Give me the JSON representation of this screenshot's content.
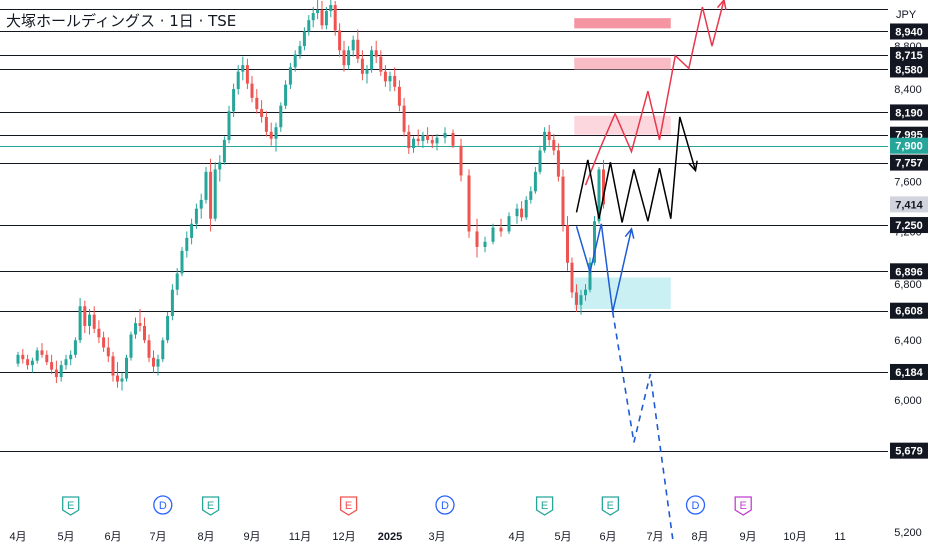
{
  "chart_data": {
    "type": "candlestick",
    "title": "大塚ホールディングス · 1日 · TSE",
    "currency": "JPY",
    "y_axis": {
      "min": 5100,
      "max": 9250,
      "ticks": [
        "5,200",
        "6,000",
        "6,400",
        "6,800",
        "7,200",
        "7,600",
        "8,000",
        "8,400",
        "8,800"
      ]
    },
    "x_axis": {
      "labels": [
        "4月",
        "5月",
        "6月",
        "7月",
        "8月",
        "9月",
        "11月",
        "12月",
        "2025",
        "3月",
        "4月",
        "5月",
        "6月",
        "7月",
        "8月",
        "9月",
        "10月",
        "11"
      ]
    },
    "levels": [
      {
        "value": 9160,
        "label": ""
      },
      {
        "value": 8940,
        "label": "8,940"
      },
      {
        "value": 8715,
        "label": "8,715"
      },
      {
        "value": 8580,
        "label": "8,580"
      },
      {
        "value": 8190,
        "label": "8,190"
      },
      {
        "value": 7995,
        "label": "7,995"
      },
      {
        "value": 7757,
        "label": "7,757"
      },
      {
        "value": 7250,
        "label": "7,250"
      },
      {
        "value": 6896,
        "label": "6,896"
      },
      {
        "value": 6608,
        "label": "6,608"
      },
      {
        "value": 6184,
        "label": "6,184"
      },
      {
        "value": 5679,
        "label": "5,679"
      }
    ],
    "marker_line": {
      "value": 7900,
      "label": "7,900",
      "color": "#26a69a"
    },
    "last_price": {
      "value": 7414,
      "label": "7,414"
    },
    "zones": [
      {
        "from_month": 11.25,
        "to_month": 13.35,
        "low": 8970,
        "high": 9070,
        "color": "#f48a97"
      },
      {
        "from_month": 11.25,
        "to_month": 13.35,
        "low": 8580,
        "high": 8690,
        "color": "#f8b4be"
      },
      {
        "from_month": 11.25,
        "to_month": 13.35,
        "low": 7995,
        "high": 8160,
        "color": "#fcd3d9"
      },
      {
        "from_month": 11.25,
        "to_month": 13.35,
        "low": 6620,
        "high": 6850,
        "color": "#c5eef3"
      }
    ],
    "events": [
      {
        "month": 1.1,
        "letter": "E"
      },
      {
        "month": 3.1,
        "letter": "D"
      },
      {
        "month": 4.1,
        "letter": "E"
      },
      {
        "month": 7.1,
        "letter": "E"
      },
      {
        "month": 9.1,
        "letter": "D"
      },
      {
        "month": 10.6,
        "letter": "E"
      },
      {
        "month": 12.05,
        "letter": "E"
      },
      {
        "month": 13.9,
        "letter": "D"
      },
      {
        "month": 14.9,
        "letter": "E"
      }
    ],
    "projection_paths": [
      {
        "color": "#e8374d",
        "points": [
          [
            11.5,
            7570
          ],
          [
            11.85,
            7900
          ],
          [
            12.15,
            8180
          ],
          [
            12.5,
            7850
          ],
          [
            12.85,
            8380
          ],
          [
            13.1,
            7950
          ],
          [
            13.45,
            8710
          ],
          [
            13.75,
            8590
          ],
          [
            14.05,
            9180
          ],
          [
            14.25,
            8800
          ],
          [
            14.5,
            9250
          ]
        ]
      },
      {
        "color": "#000000",
        "points": [
          [
            11.3,
            7350
          ],
          [
            11.55,
            7780
          ],
          [
            11.8,
            7300
          ],
          [
            12.05,
            7760
          ],
          [
            12.3,
            7270
          ],
          [
            12.55,
            7700
          ],
          [
            12.85,
            7280
          ],
          [
            13.1,
            7710
          ],
          [
            13.35,
            7300
          ],
          [
            13.55,
            8150
          ],
          [
            13.9,
            7690
          ]
        ]
      },
      {
        "color": "#1e5bd6",
        "points": [
          [
            11.3,
            7240
          ],
          [
            11.6,
            6890
          ],
          [
            11.85,
            7260
          ],
          [
            12.1,
            6600
          ],
          [
            12.5,
            7220
          ]
        ]
      },
      {
        "color": "#1e5bd6",
        "dashed": true,
        "points": [
          [
            12.1,
            6600
          ],
          [
            12.55,
            5730
          ],
          [
            12.9,
            6170
          ],
          [
            13.4,
            5150
          ]
        ]
      }
    ],
    "candles": [
      [
        0.0,
        6240,
        6320,
        6220,
        6300
      ],
      [
        0.1,
        6300,
        6340,
        6240,
        6270
      ],
      [
        0.2,
        6270,
        6300,
        6200,
        6230
      ],
      [
        0.3,
        6230,
        6280,
        6180,
        6260
      ],
      [
        0.4,
        6260,
        6350,
        6240,
        6330
      ],
      [
        0.5,
        6330,
        6380,
        6280,
        6300
      ],
      [
        0.6,
        6300,
        6330,
        6230,
        6250
      ],
      [
        0.7,
        6250,
        6300,
        6170,
        6200
      ],
      [
        0.8,
        6200,
        6260,
        6110,
        6150
      ],
      [
        0.9,
        6150,
        6260,
        6120,
        6230
      ],
      [
        1.0,
        6230,
        6300,
        6200,
        6270
      ],
      [
        1.1,
        6270,
        6330,
        6230,
        6300
      ],
      [
        1.2,
        6300,
        6420,
        6280,
        6400
      ],
      [
        1.3,
        6400,
        6700,
        6380,
        6640
      ],
      [
        1.4,
        6640,
        6680,
        6450,
        6500
      ],
      [
        1.5,
        6500,
        6620,
        6440,
        6580
      ],
      [
        1.6,
        6580,
        6640,
        6450,
        6480
      ],
      [
        1.7,
        6480,
        6540,
        6380,
        6420
      ],
      [
        1.8,
        6420,
        6460,
        6320,
        6350
      ],
      [
        1.9,
        6350,
        6420,
        6250,
        6290
      ],
      [
        2.0,
        6290,
        6320,
        6120,
        6160
      ],
      [
        2.1,
        6160,
        6250,
        6080,
        6120
      ],
      [
        2.2,
        6120,
        6180,
        6060,
        6140
      ],
      [
        2.3,
        6140,
        6300,
        6120,
        6280
      ],
      [
        2.4,
        6280,
        6460,
        6260,
        6440
      ],
      [
        2.5,
        6440,
        6560,
        6410,
        6520
      ],
      [
        2.6,
        6520,
        6620,
        6460,
        6500
      ],
      [
        2.7,
        6500,
        6560,
        6380,
        6400
      ],
      [
        2.8,
        6400,
        6440,
        6250,
        6280
      ],
      [
        2.9,
        6280,
        6330,
        6180,
        6220
      ],
      [
        3.0,
        6220,
        6300,
        6160,
        6270
      ],
      [
        3.1,
        6270,
        6420,
        6250,
        6400
      ],
      [
        3.2,
        6400,
        6600,
        6380,
        6570
      ],
      [
        3.3,
        6570,
        6800,
        6540,
        6760
      ],
      [
        3.4,
        6760,
        6920,
        6720,
        6880
      ],
      [
        3.5,
        6880,
        7080,
        6860,
        7050
      ],
      [
        3.6,
        7050,
        7200,
        7000,
        7150
      ],
      [
        3.7,
        7150,
        7300,
        7100,
        7260
      ],
      [
        3.8,
        7260,
        7420,
        7220,
        7380
      ],
      [
        3.9,
        7380,
        7500,
        7300,
        7450
      ],
      [
        4.0,
        7450,
        7720,
        7420,
        7680
      ],
      [
        4.1,
        7680,
        7790,
        7200,
        7300
      ],
      [
        4.2,
        7300,
        7760,
        7280,
        7700
      ],
      [
        4.3,
        7700,
        7820,
        7600,
        7760
      ],
      [
        4.4,
        7760,
        7980,
        7740,
        7950
      ],
      [
        4.5,
        7950,
        8250,
        7920,
        8200
      ],
      [
        4.6,
        8200,
        8450,
        8150,
        8400
      ],
      [
        4.7,
        8400,
        8620,
        8350,
        8560
      ],
      [
        4.8,
        8560,
        8700,
        8480,
        8620
      ],
      [
        4.9,
        8620,
        8680,
        8400,
        8450
      ],
      [
        5.0,
        8450,
        8520,
        8280,
        8320
      ],
      [
        5.1,
        8320,
        8400,
        8180,
        8220
      ],
      [
        5.2,
        8220,
        8300,
        8100,
        8150
      ],
      [
        5.3,
        8150,
        8200,
        7980,
        8020
      ],
      [
        5.4,
        8020,
        8100,
        7900,
        7960
      ],
      [
        5.5,
        7960,
        8100,
        7850,
        8060
      ],
      [
        5.6,
        8060,
        8280,
        8020,
        8250
      ],
      [
        5.7,
        8250,
        8480,
        8220,
        8440
      ],
      [
        5.8,
        8440,
        8640,
        8400,
        8600
      ],
      [
        5.9,
        8600,
        8760,
        8560,
        8720
      ],
      [
        6.0,
        8720,
        8850,
        8680,
        8800
      ],
      [
        6.1,
        8800,
        8980,
        8760,
        8940
      ],
      [
        6.2,
        8940,
        9100,
        8900,
        9050
      ],
      [
        6.3,
        9050,
        9180,
        8980,
        9120
      ],
      [
        6.4,
        9120,
        9250,
        9060,
        9150
      ],
      [
        6.5,
        9150,
        9240,
        8960,
        9000
      ],
      [
        6.6,
        9000,
        9180,
        8960,
        9140
      ],
      [
        6.7,
        9140,
        9250,
        9080,
        9200
      ],
      [
        6.8,
        9200,
        9240,
        8900,
        8950
      ],
      [
        6.9,
        8950,
        9020,
        8700,
        8760
      ],
      [
        7.0,
        8760,
        8850,
        8560,
        8620
      ],
      [
        7.1,
        8620,
        8800,
        8580,
        8760
      ],
      [
        7.2,
        8760,
        8900,
        8700,
        8860
      ],
      [
        7.3,
        8860,
        8960,
        8640,
        8680
      ],
      [
        7.4,
        8680,
        8760,
        8480,
        8540
      ],
      [
        7.5,
        8540,
        8620,
        8450,
        8580
      ],
      [
        7.6,
        8580,
        8800,
        8550,
        8760
      ],
      [
        7.7,
        8760,
        8850,
        8640,
        8700
      ],
      [
        7.8,
        8700,
        8760,
        8520,
        8560
      ],
      [
        7.9,
        8560,
        8620,
        8420,
        8470
      ],
      [
        8.0,
        8470,
        8560,
        8380,
        8520
      ],
      [
        8.1,
        8520,
        8600,
        8380,
        8420
      ],
      [
        8.2,
        8420,
        8480,
        8200,
        8250
      ],
      [
        8.3,
        8250,
        8320,
        7980,
        8020
      ],
      [
        8.4,
        8020,
        8080,
        7830,
        7880
      ],
      [
        8.5,
        7880,
        7980,
        7840,
        7960
      ],
      [
        8.6,
        7960,
        8040,
        7900,
        7940
      ],
      [
        8.7,
        7940,
        8020,
        7880,
        7990
      ],
      [
        8.8,
        7990,
        8060,
        7920,
        7950
      ],
      [
        8.9,
        7950,
        7990,
        7880,
        7920
      ],
      [
        9.0,
        7920,
        8000,
        7860,
        7970
      ],
      [
        9.1,
        7970,
        8060,
        7920,
        8010
      ],
      [
        9.2,
        8010,
        8040,
        7880,
        7900
      ],
      [
        9.3,
        7900,
        7960,
        7600,
        7650
      ],
      [
        9.4,
        7650,
        7700,
        7150,
        7200
      ],
      [
        9.5,
        7200,
        7300,
        7000,
        7080
      ],
      [
        9.6,
        7080,
        7160,
        7040,
        7120
      ],
      [
        9.7,
        7120,
        7260,
        7100,
        7230
      ],
      [
        9.8,
        7230,
        7300,
        7160,
        7200
      ],
      [
        9.9,
        7200,
        7350,
        7180,
        7320
      ],
      [
        10.0,
        7320,
        7420,
        7260,
        7380
      ],
      [
        10.1,
        7380,
        7440,
        7280,
        7310
      ],
      [
        10.2,
        7310,
        7480,
        7290,
        7450
      ],
      [
        10.3,
        7450,
        7560,
        7420,
        7520
      ],
      [
        10.4,
        7520,
        7720,
        7500,
        7680
      ],
      [
        10.5,
        7680,
        7900,
        7660,
        7860
      ],
      [
        10.6,
        7860,
        8060,
        7840,
        8020
      ],
      [
        10.7,
        8020,
        8080,
        7900,
        7950
      ],
      [
        10.8,
        7950,
        8000,
        7820,
        7860
      ],
      [
        10.9,
        7860,
        7920,
        7600,
        7640
      ],
      [
        11.0,
        7640,
        7700,
        7200,
        7250
      ],
      [
        11.1,
        7250,
        7320,
        6900,
        6960
      ],
      [
        11.2,
        6960,
        7000,
        6700,
        6740
      ],
      [
        11.3,
        6740,
        6800,
        6600,
        6650
      ],
      [
        11.4,
        6650,
        6760,
        6580,
        6720
      ],
      [
        11.5,
        6720,
        6800,
        6680,
        6760
      ],
      [
        11.6,
        6760,
        7000,
        6740,
        6960
      ],
      [
        11.7,
        6960,
        7320,
        6940,
        7280
      ],
      [
        11.8,
        7280,
        7720,
        7260,
        7700
      ],
      [
        11.9,
        7700,
        7780,
        7380,
        7414
      ]
    ]
  }
}
